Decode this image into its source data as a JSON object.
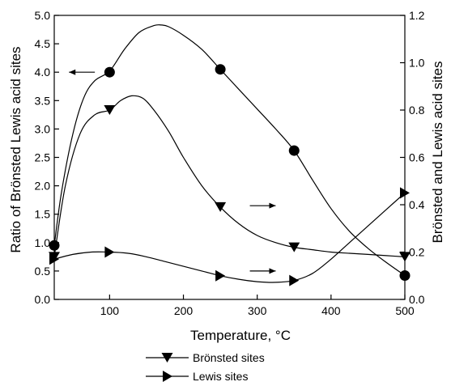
{
  "chart_data": {
    "type": "line",
    "xlabel": "Temperature, °C",
    "ylabel_left": "Ratio of Brönsted Lewis acid sites",
    "ylabel_right": "Brönsted and Lewis acid sites",
    "xlim": [
      25,
      500
    ],
    "ylim_left": [
      0,
      5
    ],
    "ylim_right": [
      0,
      1.2
    ],
    "x_ticks": [
      100,
      200,
      300,
      400,
      500
    ],
    "x_tick_labels": [
      "100",
      "200",
      "300",
      "400",
      "500"
    ],
    "y_left_ticks": [
      0,
      0.5,
      1,
      1.5,
      2,
      2.5,
      3,
      3.5,
      4,
      4.5,
      5
    ],
    "y_left_tick_labels": [
      "0.0",
      "0.5",
      "1.0",
      "1.5",
      "2.0",
      "2.5",
      "3.0",
      "3.5",
      "4.0",
      "4.5",
      "5.0"
    ],
    "y_right_ticks": [
      0,
      0.2,
      0.4,
      0.6,
      0.8,
      1.0,
      1.2
    ],
    "y_right_tick_labels": [
      "0.0",
      "0.2",
      "0.4",
      "0.6",
      "0.8",
      "1.0",
      "1.2"
    ],
    "grid": false,
    "legend_position": "bottom-center",
    "series": [
      {
        "key": "ratio",
        "axis": "left",
        "marker": "circle",
        "x": [
          25,
          100,
          250,
          350,
          500
        ],
        "y": [
          0.95,
          4.0,
          4.05,
          2.62,
          0.42
        ],
        "curve_x": [
          25,
          35,
          50,
          65,
          80,
          100,
          120,
          140,
          160,
          170,
          180,
          200,
          225,
          250,
          275,
          300,
          325,
          350,
          375,
          400,
          425,
          450,
          475,
          500
        ],
        "curve_y": [
          0.95,
          1.9,
          2.9,
          3.55,
          3.85,
          4.02,
          4.4,
          4.7,
          4.82,
          4.83,
          4.8,
          4.65,
          4.4,
          4.05,
          3.7,
          3.35,
          3.0,
          2.62,
          2.1,
          1.6,
          1.2,
          0.9,
          0.65,
          0.42
        ]
      },
      {
        "key": "bronsted",
        "axis": "right",
        "marker": "triangle-down",
        "x": [
          25,
          100,
          250,
          350,
          500
        ],
        "y": [
          0.18,
          0.8,
          0.39,
          0.22,
          0.18
        ],
        "curve_x": [
          25,
          40,
          60,
          80,
          100,
          115,
          130,
          145,
          160,
          180,
          200,
          225,
          250,
          275,
          300,
          325,
          350,
          375,
          400,
          425,
          450,
          475,
          500
        ],
        "curve_y": [
          0.18,
          0.48,
          0.7,
          0.78,
          0.8,
          0.84,
          0.86,
          0.85,
          0.8,
          0.71,
          0.6,
          0.48,
          0.39,
          0.32,
          0.27,
          0.24,
          0.22,
          0.21,
          0.2,
          0.195,
          0.19,
          0.185,
          0.18
        ]
      },
      {
        "key": "lewis",
        "axis": "right",
        "marker": "triangle-right",
        "x": [
          25,
          100,
          250,
          350,
          500
        ],
        "y": [
          0.17,
          0.2,
          0.1,
          0.08,
          0.45
        ],
        "curve_x": [
          25,
          50,
          75,
          100,
          125,
          150,
          175,
          200,
          225,
          250,
          275,
          300,
          325,
          350,
          375,
          400,
          425,
          450,
          475,
          500
        ],
        "curve_y": [
          0.17,
          0.19,
          0.2,
          0.2,
          0.195,
          0.18,
          0.16,
          0.14,
          0.12,
          0.1,
          0.085,
          0.075,
          0.072,
          0.08,
          0.11,
          0.17,
          0.24,
          0.31,
          0.38,
          0.45
        ]
      }
    ],
    "annotations": [
      {
        "type": "arrow",
        "direction": "left",
        "axis": "left",
        "x_from": 80,
        "x_to": 45,
        "y": 4.0
      },
      {
        "type": "arrow",
        "direction": "right",
        "axis": "left",
        "x_from": 290,
        "x_to": 325,
        "y": 1.65
      },
      {
        "type": "arrow",
        "direction": "right",
        "axis": "left",
        "x_from": 290,
        "x_to": 325,
        "y": 0.5
      }
    ],
    "legend": [
      {
        "label": "Brönsted sites",
        "marker": "triangle-down"
      },
      {
        "label": "Lewis sites",
        "marker": "triangle-right"
      }
    ]
  }
}
